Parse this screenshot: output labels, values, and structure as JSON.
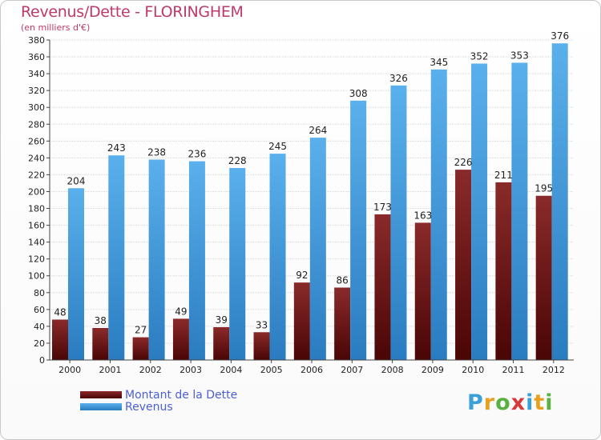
{
  "header": {
    "title": "Revenus/Dette - FLORINGHEM",
    "subtitle": "(en milliers d'€)"
  },
  "logo": {
    "text": "Proxiti",
    "letter_colors": [
      "#3aa0d8",
      "#e8a020",
      "#5ab040",
      "#d83a3a",
      "#3aa0d8",
      "#e8a020",
      "#5ab040"
    ]
  },
  "colors": {
    "dette": "#7a1a1a",
    "revenus": "#4aa3e3",
    "axis": "#444444",
    "grid": "#d8d8d8"
  },
  "chart_data": {
    "type": "bar",
    "categories": [
      "2000",
      "2001",
      "2002",
      "2003",
      "2004",
      "2005",
      "2006",
      "2007",
      "2008",
      "2009",
      "2010",
      "2011",
      "2012"
    ],
    "series": [
      {
        "name": "Montant de la Dette",
        "values": [
          48,
          38,
          27,
          49,
          39,
          33,
          92,
          86,
          173,
          163,
          226,
          211,
          195
        ]
      },
      {
        "name": "Revenus",
        "values": [
          204,
          243,
          238,
          236,
          228,
          245,
          264,
          308,
          326,
          345,
          352,
          353,
          376
        ]
      }
    ],
    "ylim": [
      0,
      380
    ],
    "ytick_step": 20,
    "grid": true,
    "legend_position": "bottom-left"
  }
}
